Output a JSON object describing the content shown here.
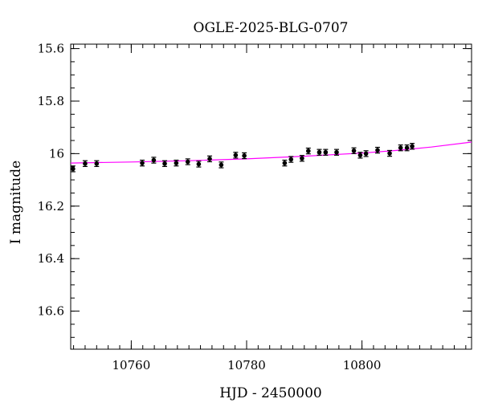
{
  "chart_data": {
    "type": "scatter",
    "title": "OGLE-2025-BLG-0707",
    "xlabel": "HJD - 2450000",
    "ylabel": "I magnitude",
    "xlim": [
      10749.5,
      10819.0
    ],
    "ylim": [
      16.745,
      15.583
    ],
    "y_inverted": true,
    "grid": false,
    "x_ticks": [
      {
        "value": 10760,
        "label": "10760"
      },
      {
        "value": 10780,
        "label": "10780"
      },
      {
        "value": 10800,
        "label": "10800"
      }
    ],
    "y_ticks": [
      {
        "value": 15.6,
        "label": "15.6"
      },
      {
        "value": 15.8,
        "label": "15.8"
      },
      {
        "value": 16.0,
        "label": "16"
      },
      {
        "value": 16.2,
        "label": "16.2"
      },
      {
        "value": 16.4,
        "label": "16.4"
      },
      {
        "value": 16.6,
        "label": "16.6"
      }
    ],
    "x_minor_step": 2,
    "y_minor_step": 0.05,
    "series": [
      {
        "points": [
          {
            "x": 10749.9,
            "y": 16.058,
            "err": 0.011
          },
          {
            "x": 10752.0,
            "y": 16.038,
            "err": 0.011
          },
          {
            "x": 10754.0,
            "y": 16.038,
            "err": 0.011
          },
          {
            "x": 10761.9,
            "y": 16.036,
            "err": 0.011
          },
          {
            "x": 10763.9,
            "y": 16.025,
            "err": 0.011
          },
          {
            "x": 10765.8,
            "y": 16.038,
            "err": 0.011
          },
          {
            "x": 10767.8,
            "y": 16.036,
            "err": 0.011
          },
          {
            "x": 10769.8,
            "y": 16.031,
            "err": 0.011
          },
          {
            "x": 10771.7,
            "y": 16.04,
            "err": 0.011
          },
          {
            "x": 10773.6,
            "y": 16.02,
            "err": 0.011
          },
          {
            "x": 10775.6,
            "y": 16.043,
            "err": 0.011
          },
          {
            "x": 10778.1,
            "y": 16.006,
            "err": 0.011
          },
          {
            "x": 10779.6,
            "y": 16.008,
            "err": 0.011
          },
          {
            "x": 10786.6,
            "y": 16.036,
            "err": 0.011
          },
          {
            "x": 10787.7,
            "y": 16.022,
            "err": 0.011
          },
          {
            "x": 10789.6,
            "y": 16.018,
            "err": 0.011
          },
          {
            "x": 10790.7,
            "y": 15.99,
            "err": 0.011
          },
          {
            "x": 10792.6,
            "y": 15.995,
            "err": 0.011
          },
          {
            "x": 10793.7,
            "y": 15.995,
            "err": 0.011
          },
          {
            "x": 10795.6,
            "y": 15.995,
            "err": 0.011
          },
          {
            "x": 10798.6,
            "y": 15.989,
            "err": 0.011
          },
          {
            "x": 10799.7,
            "y": 16.006,
            "err": 0.011
          },
          {
            "x": 10800.7,
            "y": 16.0,
            "err": 0.011
          },
          {
            "x": 10802.7,
            "y": 15.987,
            "err": 0.011
          },
          {
            "x": 10804.8,
            "y": 15.999,
            "err": 0.011
          },
          {
            "x": 10806.7,
            "y": 15.978,
            "err": 0.011
          },
          {
            "x": 10807.8,
            "y": 15.978,
            "err": 0.011
          },
          {
            "x": 10808.7,
            "y": 15.972,
            "err": 0.011
          }
        ],
        "marker_color": "#000000"
      }
    ],
    "model_curve": {
      "color": "#ff00ff",
      "points": [
        {
          "x": 10749.5,
          "y": 16.036
        },
        {
          "x": 10760.0,
          "y": 16.032
        },
        {
          "x": 10770.0,
          "y": 16.027
        },
        {
          "x": 10780.0,
          "y": 16.02
        },
        {
          "x": 10790.0,
          "y": 16.01
        },
        {
          "x": 10800.0,
          "y": 15.998
        },
        {
          "x": 10806.0,
          "y": 15.988
        },
        {
          "x": 10812.0,
          "y": 15.975
        },
        {
          "x": 10819.0,
          "y": 15.956
        }
      ]
    }
  }
}
